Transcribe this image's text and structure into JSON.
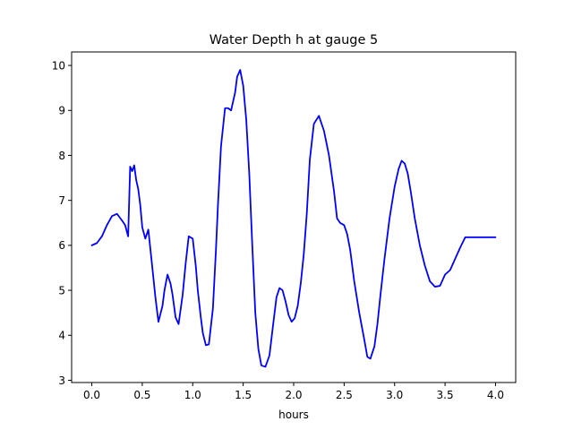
{
  "chart_data": {
    "type": "line",
    "title": "Water Depth h at gauge 5",
    "xlabel": "hours",
    "ylabel": "",
    "xlim": [
      -0.2,
      4.2
    ],
    "ylim": [
      2.95,
      10.3
    ],
    "xticks": [
      0.0,
      0.5,
      1.0,
      1.5,
      2.0,
      2.5,
      3.0,
      3.5,
      4.0
    ],
    "xtick_labels": [
      "0.0",
      "0.5",
      "1.0",
      "1.5",
      "2.0",
      "2.5",
      "3.0",
      "3.5",
      "4.0"
    ],
    "yticks": [
      3,
      4,
      5,
      6,
      7,
      8,
      9,
      10
    ],
    "ytick_labels": [
      "3",
      "4",
      "5",
      "6",
      "7",
      "8",
      "9",
      "10"
    ],
    "grid": false,
    "legend": "none",
    "series": [
      {
        "color": "#0000ff",
        "x": [
          0.0,
          0.05,
          0.1,
          0.15,
          0.2,
          0.25,
          0.3,
          0.33,
          0.36,
          0.38,
          0.4,
          0.42,
          0.44,
          0.46,
          0.48,
          0.5,
          0.53,
          0.56,
          0.6,
          0.63,
          0.66,
          0.7,
          0.72,
          0.75,
          0.78,
          0.8,
          0.83,
          0.86,
          0.9,
          0.93,
          0.96,
          1.0,
          1.03,
          1.05,
          1.08,
          1.1,
          1.13,
          1.16,
          1.2,
          1.23,
          1.25,
          1.28,
          1.32,
          1.35,
          1.38,
          1.42,
          1.44,
          1.47,
          1.5,
          1.53,
          1.56,
          1.59,
          1.62,
          1.65,
          1.68,
          1.72,
          1.76,
          1.8,
          1.83,
          1.86,
          1.89,
          1.92,
          1.95,
          1.98,
          2.01,
          2.04,
          2.07,
          2.1,
          2.13,
          2.16,
          2.2,
          2.25,
          2.3,
          2.35,
          2.4,
          2.43,
          2.46,
          2.5,
          2.53,
          2.56,
          2.6,
          2.65,
          2.7,
          2.73,
          2.76,
          2.8,
          2.83,
          2.86,
          2.9,
          2.95,
          3.0,
          3.04,
          3.07,
          3.1,
          3.13,
          3.16,
          3.2,
          3.25,
          3.3,
          3.35,
          3.4,
          3.45,
          3.5,
          3.55,
          3.6,
          3.65,
          3.7,
          3.75,
          3.8,
          3.83,
          3.85,
          3.88,
          3.92,
          3.96,
          4.0
        ],
        "y": [
          6.0,
          6.05,
          6.2,
          6.45,
          6.65,
          6.7,
          6.55,
          6.45,
          6.2,
          7.75,
          7.65,
          7.78,
          7.45,
          7.25,
          6.9,
          6.4,
          6.15,
          6.35,
          5.5,
          4.85,
          4.3,
          4.65,
          5.0,
          5.35,
          5.15,
          4.9,
          4.4,
          4.25,
          4.9,
          5.6,
          6.2,
          6.15,
          5.55,
          5.0,
          4.4,
          4.05,
          3.78,
          3.8,
          4.6,
          5.9,
          6.9,
          8.2,
          9.05,
          9.05,
          9.0,
          9.4,
          9.75,
          9.9,
          9.55,
          8.8,
          7.6,
          6.0,
          4.5,
          3.7,
          3.33,
          3.3,
          3.55,
          4.3,
          4.85,
          5.05,
          5.0,
          4.75,
          4.45,
          4.3,
          4.38,
          4.65,
          5.15,
          5.8,
          6.7,
          7.9,
          8.7,
          8.88,
          8.55,
          8.0,
          7.2,
          6.6,
          6.5,
          6.45,
          6.25,
          5.9,
          5.2,
          4.5,
          3.9,
          3.52,
          3.48,
          3.75,
          4.25,
          4.9,
          5.7,
          6.6,
          7.3,
          7.7,
          7.88,
          7.82,
          7.6,
          7.2,
          6.6,
          6.0,
          5.55,
          5.2,
          5.08,
          5.1,
          5.35,
          5.45,
          5.7,
          5.95,
          6.18,
          6.18,
          6.18,
          6.18,
          6.18,
          6.18,
          6.18,
          6.18,
          6.18
        ]
      }
    ]
  }
}
